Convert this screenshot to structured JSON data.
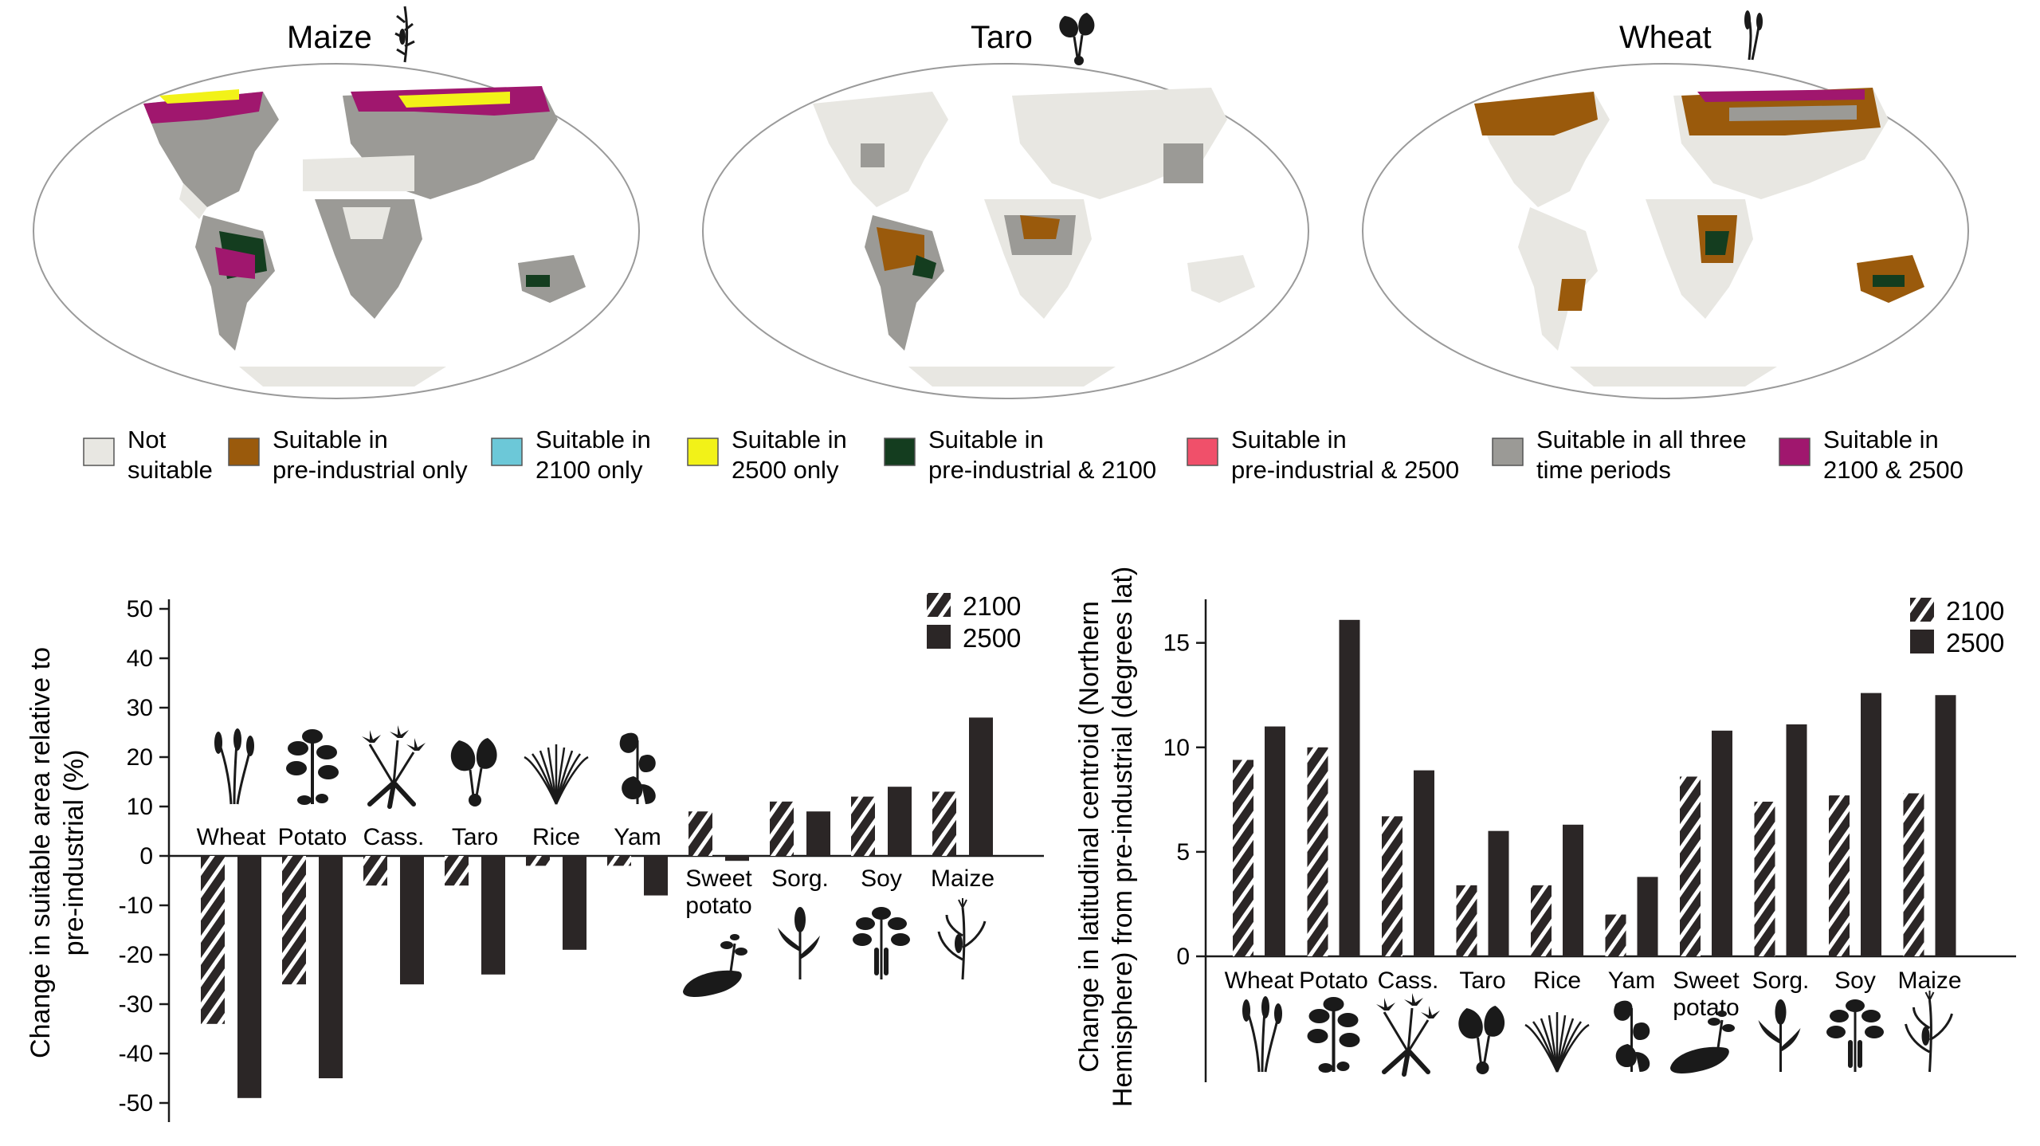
{
  "maps": [
    {
      "title": "Maize",
      "icon": "maize-icon"
    },
    {
      "title": "Taro",
      "icon": "taro-icon"
    },
    {
      "title": "Wheat",
      "icon": "wheat-icon"
    }
  ],
  "legend": [
    {
      "line1": "Not",
      "line2": "suitable",
      "color": "#e8e7e2"
    },
    {
      "line1": "Suitable in",
      "line2": "pre-industrial only",
      "color": "#9a5a0c"
    },
    {
      "line1": "Suitable in",
      "line2": "2100 only",
      "color": "#6cc8d8"
    },
    {
      "line1": "Suitable in",
      "line2": "2500 only",
      "color": "#f2f218"
    },
    {
      "line1": "Suitable in",
      "line2": "pre-industrial & 2100",
      "color": "#143d1f"
    },
    {
      "line1": "Suitable in",
      "line2": "pre-industrial & 2500",
      "color": "#f0506a"
    },
    {
      "line1": "Suitable in all three",
      "line2": "time periods",
      "color": "#9b9a96"
    },
    {
      "line1": "Suitable in",
      "line2": "2100 & 2500",
      "color": "#a0176e"
    }
  ],
  "chart_data": [
    {
      "type": "bar",
      "ylabel": [
        "Change in suitable area relative to",
        "pre-industrial (%)"
      ],
      "ylim": [
        -50,
        50
      ],
      "yticks": [
        50,
        40,
        30,
        20,
        10,
        0,
        -10,
        -20,
        -30,
        -40,
        -50
      ],
      "categories": [
        {
          "lines": [
            "Wheat"
          ],
          "icon": "wheat-icon",
          "label_side": "above"
        },
        {
          "lines": [
            "Potato"
          ],
          "icon": "potato-plant-icon",
          "label_side": "above"
        },
        {
          "lines": [
            "Cass."
          ],
          "icon": "cassava-icon",
          "label_side": "above"
        },
        {
          "lines": [
            "Taro"
          ],
          "icon": "taro-icon",
          "label_side": "above"
        },
        {
          "lines": [
            "Rice"
          ],
          "icon": "rice-icon",
          "label_side": "above"
        },
        {
          "lines": [
            "Yam"
          ],
          "icon": "yam-icon",
          "label_side": "above"
        },
        {
          "lines": [
            "Sweet",
            "potato"
          ],
          "icon": "sweet-potato-icon",
          "label_side": "below"
        },
        {
          "lines": [
            "Sorg."
          ],
          "icon": "sorghum-icon",
          "label_side": "below"
        },
        {
          "lines": [
            "Soy"
          ],
          "icon": "soy-icon",
          "label_side": "below"
        },
        {
          "lines": [
            "Maize"
          ],
          "icon": "maize-icon",
          "label_side": "below"
        }
      ],
      "series": [
        {
          "name": "2100",
          "pattern": "hatched",
          "values": [
            -34,
            -26,
            -6,
            -6,
            -2,
            -2,
            9,
            11,
            12,
            13
          ]
        },
        {
          "name": "2500",
          "pattern": "solid",
          "values": [
            -49,
            -45,
            -26,
            -24,
            -19,
            -8,
            -1,
            9,
            14,
            28
          ]
        }
      ],
      "legend_position": "top-right"
    },
    {
      "type": "bar",
      "ylabel": [
        "Change in latitudinal centroid (Northern",
        "Hemisphere) from pre-industrial (degrees lat)"
      ],
      "ylim": [
        0,
        18
      ],
      "yticks": [
        15,
        10,
        5,
        0
      ],
      "categories": [
        {
          "lines": [
            "Wheat"
          ],
          "icon": "wheat-icon"
        },
        {
          "lines": [
            "Potato"
          ],
          "icon": "potato-plant-icon"
        },
        {
          "lines": [
            "Cass."
          ],
          "icon": "cassava-icon"
        },
        {
          "lines": [
            "Taro"
          ],
          "icon": "taro-icon"
        },
        {
          "lines": [
            "Rice"
          ],
          "icon": "rice-icon"
        },
        {
          "lines": [
            "Yam"
          ],
          "icon": "yam-icon"
        },
        {
          "lines": [
            "Sweet",
            "potato"
          ],
          "icon": "sweet-potato-icon"
        },
        {
          "lines": [
            "Sorg."
          ],
          "icon": "sorghum-icon"
        },
        {
          "lines": [
            "Soy"
          ],
          "icon": "soy-icon"
        },
        {
          "lines": [
            "Maize"
          ],
          "icon": "maize-icon"
        }
      ],
      "series": [
        {
          "name": "2100",
          "pattern": "hatched",
          "values": [
            9.4,
            10.0,
            6.7,
            3.4,
            3.4,
            2.0,
            8.6,
            7.4,
            7.7,
            7.8
          ]
        },
        {
          "name": "2500",
          "pattern": "solid",
          "values": [
            11.0,
            16.1,
            8.9,
            6.0,
            6.3,
            3.8,
            10.8,
            11.1,
            12.6,
            12.5
          ]
        }
      ],
      "legend_position": "top-right"
    }
  ]
}
